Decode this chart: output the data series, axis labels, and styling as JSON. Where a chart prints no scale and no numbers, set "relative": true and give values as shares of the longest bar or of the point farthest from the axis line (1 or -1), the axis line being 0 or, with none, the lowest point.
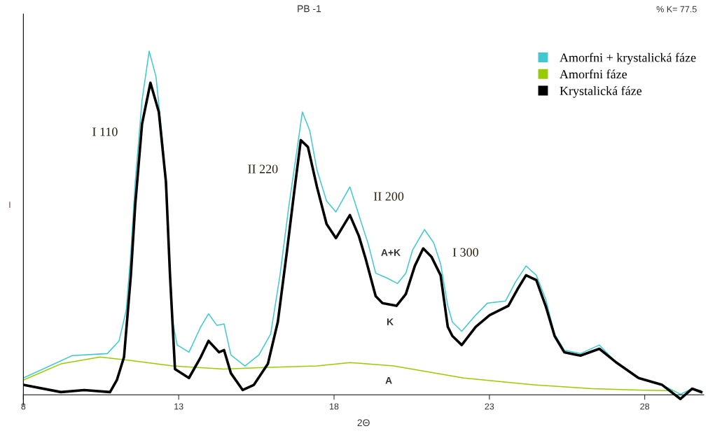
{
  "chart_data": {
    "type": "line",
    "title": "PB -1",
    "xlabel": "2Θ",
    "ylabel": "I",
    "relative": true,
    "xlim": [
      8,
      29.9
    ],
    "xticks": [
      8,
      13,
      18,
      23,
      28
    ],
    "legend": "top right",
    "annotations": [
      "% K= 77.5",
      "I 110",
      "II 220",
      "II 200",
      "I 300",
      "A+K",
      "K",
      "A"
    ],
    "series": [
      {
        "name": "Amorfni + krystalická fáze",
        "color": "#40c8d0",
        "x": [
          8.0,
          9.57,
          10.7,
          11.08,
          11.31,
          11.46,
          11.6,
          11.82,
          12.05,
          12.27,
          12.5,
          12.66,
          12.81,
          12.95,
          13.33,
          13.71,
          13.96,
          14.23,
          14.46,
          14.68,
          15.13,
          15.58,
          15.96,
          16.26,
          16.55,
          16.82,
          16.98,
          17.22,
          17.45,
          17.76,
          18.06,
          18.51,
          18.8,
          19.11,
          19.34,
          19.7,
          20.04,
          20.31,
          20.53,
          20.91,
          21.21,
          21.43,
          21.66,
          21.81,
          22.11,
          22.56,
          22.94,
          23.52,
          23.84,
          24.18,
          24.51,
          24.81,
          25.1,
          25.41,
          25.93,
          26.54,
          27.06,
          27.8,
          28.56,
          29.15,
          29.53,
          29.82
        ],
        "values": [
          0.049,
          0.114,
          0.12,
          0.157,
          0.246,
          0.415,
          0.619,
          0.857,
          1.0,
          0.925,
          0.721,
          0.483,
          0.212,
          0.145,
          0.124,
          0.198,
          0.236,
          0.202,
          0.206,
          0.116,
          0.084,
          0.116,
          0.177,
          0.348,
          0.552,
          0.721,
          0.823,
          0.768,
          0.654,
          0.564,
          0.532,
          0.605,
          0.523,
          0.436,
          0.354,
          0.34,
          0.324,
          0.354,
          0.422,
          0.481,
          0.442,
          0.381,
          0.259,
          0.212,
          0.185,
          0.232,
          0.267,
          0.273,
          0.328,
          0.375,
          0.348,
          0.279,
          0.177,
          0.13,
          0.12,
          0.145,
          0.096,
          0.049,
          0.029,
          0.002,
          0.018,
          0.012
        ]
      },
      {
        "name": "Amorfni fáze",
        "color": "#99cc00",
        "x": [
          8.0,
          9.21,
          10.47,
          11.46,
          12.81,
          14.46,
          15.58,
          17.45,
          18.51,
          19.92,
          22.17,
          24.42,
          26.31,
          27.8,
          28.92
        ],
        "values": [
          0.043,
          0.09,
          0.11,
          0.1,
          0.084,
          0.075,
          0.079,
          0.084,
          0.094,
          0.084,
          0.049,
          0.029,
          0.018,
          0.014,
          0.012
        ]
      },
      {
        "name": "Krystalická fáze",
        "color": "#000000",
        "x": [
          8.0,
          9.21,
          9.96,
          10.79,
          11.01,
          11.24,
          11.46,
          11.6,
          11.82,
          12.09,
          12.36,
          12.59,
          12.72,
          12.88,
          13.33,
          13.71,
          13.96,
          14.3,
          14.46,
          14.68,
          15.06,
          15.42,
          15.87,
          16.19,
          16.48,
          16.71,
          16.93,
          17.16,
          17.45,
          17.76,
          18.06,
          18.51,
          18.8,
          19.02,
          19.34,
          19.56,
          20.01,
          20.31,
          20.6,
          20.87,
          21.14,
          21.43,
          21.66,
          21.81,
          22.11,
          22.56,
          23.01,
          23.61,
          23.91,
          24.18,
          24.51,
          24.81,
          25.1,
          25.41,
          25.93,
          26.54,
          27.06,
          27.8,
          28.56,
          29.15,
          29.53,
          29.82
        ],
        "values": [
          0.029,
          0.008,
          0.014,
          0.008,
          0.043,
          0.11,
          0.348,
          0.552,
          0.788,
          0.908,
          0.823,
          0.619,
          0.348,
          0.075,
          0.049,
          0.11,
          0.157,
          0.124,
          0.13,
          0.063,
          0.014,
          0.029,
          0.09,
          0.212,
          0.415,
          0.585,
          0.741,
          0.721,
          0.605,
          0.497,
          0.456,
          0.523,
          0.462,
          0.395,
          0.287,
          0.267,
          0.259,
          0.293,
          0.375,
          0.426,
          0.401,
          0.348,
          0.198,
          0.171,
          0.145,
          0.198,
          0.232,
          0.259,
          0.308,
          0.348,
          0.334,
          0.259,
          0.171,
          0.124,
          0.114,
          0.134,
          0.096,
          0.049,
          0.029,
          -0.012,
          0.018,
          0.008
        ]
      }
    ]
  }
}
